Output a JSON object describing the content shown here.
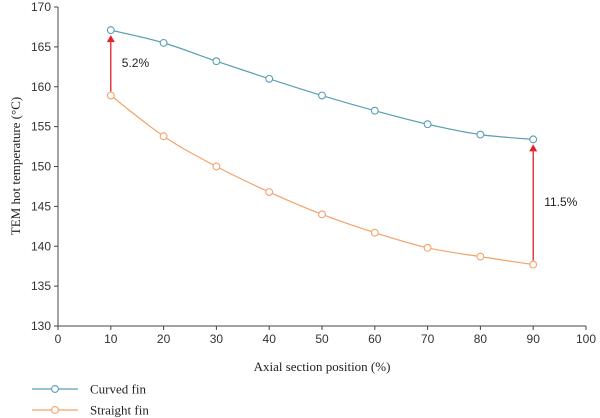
{
  "chart_data": {
    "type": "line",
    "xlabel": "Axial section position (%)",
    "ylabel": "TEM hot temperature (°C)",
    "xlim": [
      0,
      100
    ],
    "ylim": [
      130,
      170
    ],
    "x_ticks": [
      0,
      10,
      20,
      30,
      40,
      50,
      60,
      70,
      80,
      90,
      100
    ],
    "y_ticks": [
      130,
      135,
      140,
      145,
      150,
      155,
      160,
      165,
      170
    ],
    "grid": false,
    "legend_position": "bottom-left",
    "x": [
      10,
      20,
      30,
      40,
      50,
      60,
      70,
      80,
      90
    ],
    "series": [
      {
        "name": "Curved fin",
        "color": "#5a9fb3",
        "values": [
          167.1,
          165.5,
          163.2,
          161.0,
          158.9,
          157.0,
          155.3,
          154.0,
          153.4
        ]
      },
      {
        "name": "Straight fin",
        "color": "#f4a26b",
        "values": [
          158.9,
          153.8,
          150.0,
          146.8,
          144.0,
          141.7,
          139.8,
          138.7,
          137.7
        ]
      }
    ],
    "annotations": [
      {
        "text": "5.2%",
        "x": 10,
        "from": 158.9,
        "to": 167.1,
        "color": "#e0202a"
      },
      {
        "text": "11.5%",
        "x": 90,
        "from": 137.7,
        "to": 153.4,
        "color": "#e0202a"
      }
    ]
  }
}
